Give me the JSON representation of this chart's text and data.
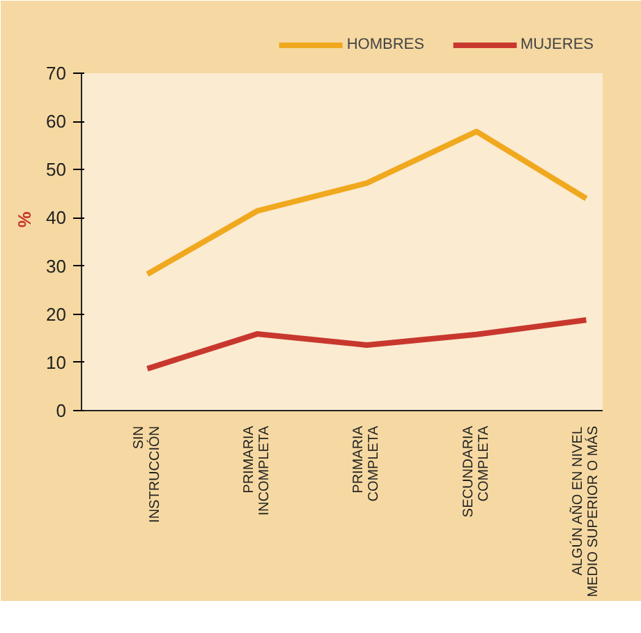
{
  "chart_data": {
    "type": "line",
    "ylabel": "%",
    "categories": [
      "SIN\nINSTRUCCIÓN",
      "PRIMARIA\nINCOMPLETA",
      "PRIMARIA\nCOMPLETA",
      "SECUNDARIA\nCOMPLETA",
      "ALGÚN AÑO EN NIVEL\nMEDIO SUPERIOR O MÁS"
    ],
    "series": [
      {
        "name": "HOMBRES",
        "color": "#f0a81e",
        "values": [
          28.3,
          41.4,
          47.2,
          57.9,
          44.0
        ]
      },
      {
        "name": "MUJERES",
        "color": "#c8372d",
        "values": [
          8.7,
          15.9,
          13.6,
          15.8,
          18.8
        ]
      }
    ],
    "ylim": [
      0,
      70
    ],
    "yticks": [
      0,
      10,
      20,
      30,
      40,
      50,
      60,
      70
    ],
    "grid": false,
    "legend": "top right",
    "marker": "none",
    "line_style": "solid"
  }
}
